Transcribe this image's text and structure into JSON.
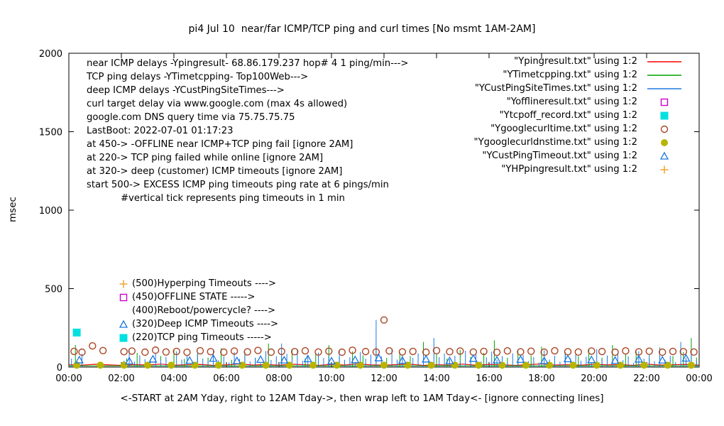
{
  "chart_data": {
    "type": "line",
    "title": "pi4 Jul 10  near/far ICMP/TCP ping and curl times [No msmt 1AM-2AM]",
    "ylabel": "msec",
    "xlabel": "<-START at 2AM Yday, right to 12AM Tday->, then wrap left to 1AM Tday<- [ignore connecting lines]",
    "xlim": [
      0,
      24
    ],
    "ylim": [
      0,
      2000
    ],
    "grid": false,
    "yticks": [
      0,
      500,
      1000,
      1500,
      2000
    ],
    "xticks": [
      {
        "pos": 0,
        "label": "00:00"
      },
      {
        "pos": 2,
        "label": "02:00"
      },
      {
        "pos": 4,
        "label": "04:00"
      },
      {
        "pos": 6,
        "label": "06:00"
      },
      {
        "pos": 8,
        "label": "08:00"
      },
      {
        "pos": 10,
        "label": "10:00"
      },
      {
        "pos": 12,
        "label": "12:00"
      },
      {
        "pos": 14,
        "label": "14:00"
      },
      {
        "pos": 16,
        "label": "16:00"
      },
      {
        "pos": 18,
        "label": "18:00"
      },
      {
        "pos": 20,
        "label": "20:00"
      },
      {
        "pos": 22,
        "label": "22:00"
      },
      {
        "pos": 24,
        "label": "00:00"
      }
    ],
    "info_lines": [
      "near ICMP delays -Ypingresult- 68.86.179.237 hop# 4 1 ping/min--->",
      "TCP ping delays -YTimetcpping- Top100Web--->",
      "deep ICMP delays -YCustPingSiteTimes--->",
      "curl target delay via www.google.com (max 4s allowed)",
      "google.com DNS query time via 75.75.75.75",
      "LastBoot: 2022-07-01 01:17:23",
      "at 450-> -OFFLINE near ICMP+TCP ping fail [ignore 2AM]",
      "at 220-> TCP ping failed while online [ignore 2AM]",
      "at 320-> deep (customer) ICMP timeouts [ignore 2AM]",
      "start 500-> EXCESS ICMP ping timeouts ping rate at 6 pings/min",
      "#vertical tick represents ping timeouts in 1 min"
    ],
    "level_labels": [
      {
        "text": "(500)Hyperping Timeouts ---->",
        "marker": "plus",
        "color": "#f0a840"
      },
      {
        "text": "(450)OFFLINE STATE ----->",
        "marker": "square-open",
        "color": "#cc00cc"
      },
      {
        "text": "(400)Reboot/powercycle? ---->",
        "marker": "none",
        "color": ""
      },
      {
        "text": "(320)Deep ICMP Timeouts ---->",
        "marker": "triangle-open",
        "color": "#1e78e0"
      },
      {
        "text": "(220)TCP ping Timeouts ----->",
        "marker": "square-filled",
        "color": "#00e0e0"
      }
    ],
    "legend": [
      {
        "label": "\"Ypingresult.txt\" using 1:2",
        "sample": "line",
        "color": "#ff0000"
      },
      {
        "label": "\"YTimetcpping.txt\" using 1:2",
        "sample": "line",
        "color": "#00a000"
      },
      {
        "label": "\"YCustPingSiteTimes.txt\" using 1:2",
        "sample": "line",
        "color": "#1e78e0"
      },
      {
        "label": "\"Yofflineresult.txt\" using 1:2",
        "sample": "square-open",
        "color": "#cc00cc"
      },
      {
        "label": "\"Ytcpoff_record.txt\" using 1:2",
        "sample": "square-filled",
        "color": "#00e0e0"
      },
      {
        "label": "\"Ygooglecurltime.txt\" using 1:2",
        "sample": "circle-open",
        "color": "#aa4422"
      },
      {
        "label": "\"Ygooglecurldnstime.txt\" using 1:2",
        "sample": "circle-filled",
        "color": "#b8b400"
      },
      {
        "label": "\"YCustPingTimeout.txt\" using 1:2",
        "sample": "triangle-open",
        "color": "#1e78e0"
      },
      {
        "label": "\"YHPpingresult.txt\" using 1:2",
        "sample": "plus",
        "color": "#f0a840"
      }
    ],
    "series": [
      {
        "name": "Ypingresult.txt",
        "render": "line",
        "color": "#ff0000",
        "x0": 0,
        "dx": 0.5,
        "y": [
          15,
          12,
          18,
          14,
          11,
          16,
          13,
          19,
          12,
          15,
          17,
          11,
          14,
          20,
          13,
          16,
          12,
          18,
          15,
          11,
          17,
          13,
          20,
          14,
          12,
          16,
          18,
          11,
          15,
          13,
          19,
          12,
          17,
          14,
          11,
          16,
          20,
          13,
          15,
          12,
          18,
          14,
          16,
          11,
          19,
          13,
          15,
          17,
          12
        ]
      },
      {
        "name": "YTimetcpping.txt",
        "render": "impulses",
        "color": "#00a000",
        "baseline": 8,
        "points": [
          [
            0.25,
            140
          ],
          [
            0.5,
            60
          ],
          [
            2.2,
            55
          ],
          [
            2.6,
            90
          ],
          [
            3.1,
            48
          ],
          [
            3.5,
            70
          ],
          [
            4.0,
            110
          ],
          [
            4.4,
            52
          ],
          [
            4.9,
            85
          ],
          [
            5.3,
            60
          ],
          [
            5.8,
            120
          ],
          [
            6.2,
            46
          ],
          [
            6.7,
            95
          ],
          [
            7.1,
            58
          ],
          [
            7.6,
            150
          ],
          [
            8.1,
            70
          ],
          [
            8.5,
            115
          ],
          [
            9.0,
            55
          ],
          [
            9.4,
            90
          ],
          [
            9.9,
            140
          ],
          [
            10.3,
            62
          ],
          [
            10.8,
            100
          ],
          [
            11.2,
            75
          ],
          [
            11.7,
            130
          ],
          [
            12.1,
            58
          ],
          [
            12.6,
            95
          ],
          [
            13.0,
            70
          ],
          [
            13.5,
            160
          ],
          [
            14.0,
            85
          ],
          [
            14.4,
            55
          ],
          [
            14.9,
            110
          ],
          [
            15.3,
            65
          ],
          [
            15.8,
            90
          ],
          [
            16.2,
            170
          ],
          [
            16.7,
            60
          ],
          [
            17.1,
            105
          ],
          [
            17.6,
            75
          ],
          [
            18.0,
            130
          ],
          [
            18.5,
            55
          ],
          [
            18.9,
            95
          ],
          [
            19.4,
            70
          ],
          [
            19.8,
            115
          ],
          [
            20.3,
            60
          ],
          [
            20.7,
            140
          ],
          [
            21.2,
            80
          ],
          [
            21.6,
            100
          ],
          [
            22.1,
            55
          ],
          [
            22.5,
            125
          ],
          [
            23.0,
            70
          ],
          [
            23.4,
            95
          ],
          [
            23.7,
            185
          ],
          [
            23.9,
            60
          ]
        ]
      },
      {
        "name": "YCustPingSiteTimes.txt",
        "render": "impulses",
        "color": "#1e78e0",
        "x0": 0.1,
        "dx": 0.2,
        "heights": [
          55,
          30,
          85,
          0,
          0,
          0,
          0,
          0,
          0,
          0,
          40,
          105,
          35,
          75,
          50,
          28,
          90,
          42,
          65,
          33,
          100,
          48,
          72,
          26,
          88,
          55,
          38,
          112,
          44,
          68,
          30,
          95,
          52,
          78,
          36,
          60,
          25,
          102,
          45,
          70,
          150,
          85,
          50,
          115,
          40,
          66,
          28,
          92,
          58,
          74,
          34,
          108,
          46,
          62,
          30,
          96,
          54,
          80,
          300,
          68,
          26,
          110,
          48,
          76,
          35,
          58,
          88,
          90,
          42,
          185,
          64,
          86,
          50,
          72,
          30,
          104,
          44,
          78,
          36,
          62,
          98,
          46,
          70,
          32,
          88,
          52,
          76,
          38,
          64,
          28,
          106,
          48,
          72,
          34,
          94,
          56,
          80,
          40,
          66,
          30,
          115,
          50,
          74,
          36,
          90,
          44,
          68,
          26,
          100,
          54,
          78,
          38,
          120,
          46,
          72,
          32,
          160,
          58,
          84,
          40
        ]
      },
      {
        "name": "Yofflineresult.txt",
        "render": "scatter",
        "marker": "square-open",
        "color": "#cc00cc",
        "points": []
      },
      {
        "name": "Ytcpoff_record.txt",
        "render": "scatter",
        "marker": "square-filled",
        "color": "#00e0e0",
        "points": [
          [
            0.3,
            220
          ]
        ]
      },
      {
        "name": "Ygooglecurltime.txt",
        "render": "scatter",
        "marker": "circle-open",
        "color": "#aa4422",
        "points": [
          [
            0.2,
            100
          ],
          [
            0.5,
            95
          ],
          [
            0.9,
            135
          ],
          [
            1.3,
            105
          ],
          [
            2.1,
            98
          ],
          [
            2.4,
            102
          ],
          [
            2.9,
            95
          ],
          [
            3.3,
            108
          ],
          [
            3.7,
            96
          ],
          [
            4.1,
            100
          ],
          [
            4.5,
            94
          ],
          [
            5.0,
            104
          ],
          [
            5.4,
            98
          ],
          [
            5.9,
            95
          ],
          [
            6.3,
            102
          ],
          [
            6.8,
            97
          ],
          [
            7.2,
            106
          ],
          [
            7.7,
            95
          ],
          [
            8.1,
            100
          ],
          [
            8.6,
            98
          ],
          [
            9.0,
            104
          ],
          [
            9.5,
            96
          ],
          [
            9.9,
            101
          ],
          [
            10.4,
            95
          ],
          [
            10.8,
            107
          ],
          [
            11.3,
            99
          ],
          [
            11.7,
            96
          ],
          [
            12.0,
            300
          ],
          [
            12.2,
            103
          ],
          [
            12.7,
            97
          ],
          [
            13.1,
            100
          ],
          [
            13.6,
            95
          ],
          [
            14.0,
            105
          ],
          [
            14.5,
            98
          ],
          [
            14.9,
            102
          ],
          [
            15.4,
            96
          ],
          [
            15.8,
            100
          ],
          [
            16.3,
            94
          ],
          [
            16.7,
            103
          ],
          [
            17.2,
            97
          ],
          [
            17.6,
            101
          ],
          [
            18.1,
            95
          ],
          [
            18.5,
            104
          ],
          [
            19.0,
            98
          ],
          [
            19.4,
            96
          ],
          [
            19.9,
            102
          ],
          [
            20.3,
            99
          ],
          [
            20.8,
            95
          ],
          [
            21.2,
            103
          ],
          [
            21.7,
            97
          ],
          [
            22.1,
            101
          ],
          [
            22.6,
            95
          ],
          [
            23.0,
            100
          ],
          [
            23.4,
            98
          ],
          [
            23.8,
            96
          ]
        ]
      },
      {
        "name": "Ygooglecurldnstime.txt",
        "render": "scatter",
        "marker": "circle-filled",
        "color": "#b8b400",
        "points": [
          [
            0.3,
            12
          ],
          [
            1.2,
            12
          ],
          [
            2.1,
            12
          ],
          [
            3.0,
            12
          ],
          [
            3.9,
            12
          ],
          [
            4.8,
            12
          ],
          [
            5.7,
            12
          ],
          [
            6.6,
            12
          ],
          [
            7.5,
            12
          ],
          [
            8.4,
            12
          ],
          [
            9.3,
            12
          ],
          [
            10.2,
            12
          ],
          [
            11.1,
            12
          ],
          [
            12.0,
            12
          ],
          [
            12.9,
            12
          ],
          [
            13.8,
            12
          ],
          [
            14.7,
            12
          ],
          [
            15.6,
            12
          ],
          [
            16.5,
            12
          ],
          [
            17.4,
            12
          ],
          [
            18.3,
            12
          ],
          [
            19.2,
            12
          ],
          [
            20.1,
            12
          ],
          [
            21.0,
            12
          ],
          [
            21.9,
            12
          ],
          [
            22.8,
            12
          ],
          [
            23.7,
            12
          ]
        ]
      },
      {
        "name": "YCustPingTimeout.txt",
        "render": "scatter",
        "marker": "triangle-open",
        "color": "#1e78e0",
        "points": [
          [
            0.4,
            45
          ],
          [
            2.3,
            38
          ],
          [
            3.2,
            50
          ],
          [
            4.6,
            42
          ],
          [
            5.5,
            55
          ],
          [
            6.4,
            40
          ],
          [
            7.3,
            48
          ],
          [
            8.2,
            44
          ],
          [
            9.1,
            52
          ],
          [
            10.0,
            38
          ],
          [
            10.9,
            46
          ],
          [
            11.8,
            58
          ],
          [
            12.7,
            42
          ],
          [
            13.6,
            50
          ],
          [
            14.5,
            40
          ],
          [
            15.4,
            54
          ],
          [
            16.3,
            44
          ],
          [
            17.2,
            48
          ],
          [
            18.1,
            40
          ],
          [
            19.0,
            52
          ],
          [
            19.9,
            46
          ],
          [
            20.8,
            42
          ],
          [
            21.7,
            50
          ],
          [
            22.6,
            44
          ],
          [
            23.5,
            56
          ]
        ]
      },
      {
        "name": "YHPpingresult.txt",
        "render": "scatter",
        "marker": "plus",
        "color": "#f0a840",
        "points": []
      }
    ]
  }
}
